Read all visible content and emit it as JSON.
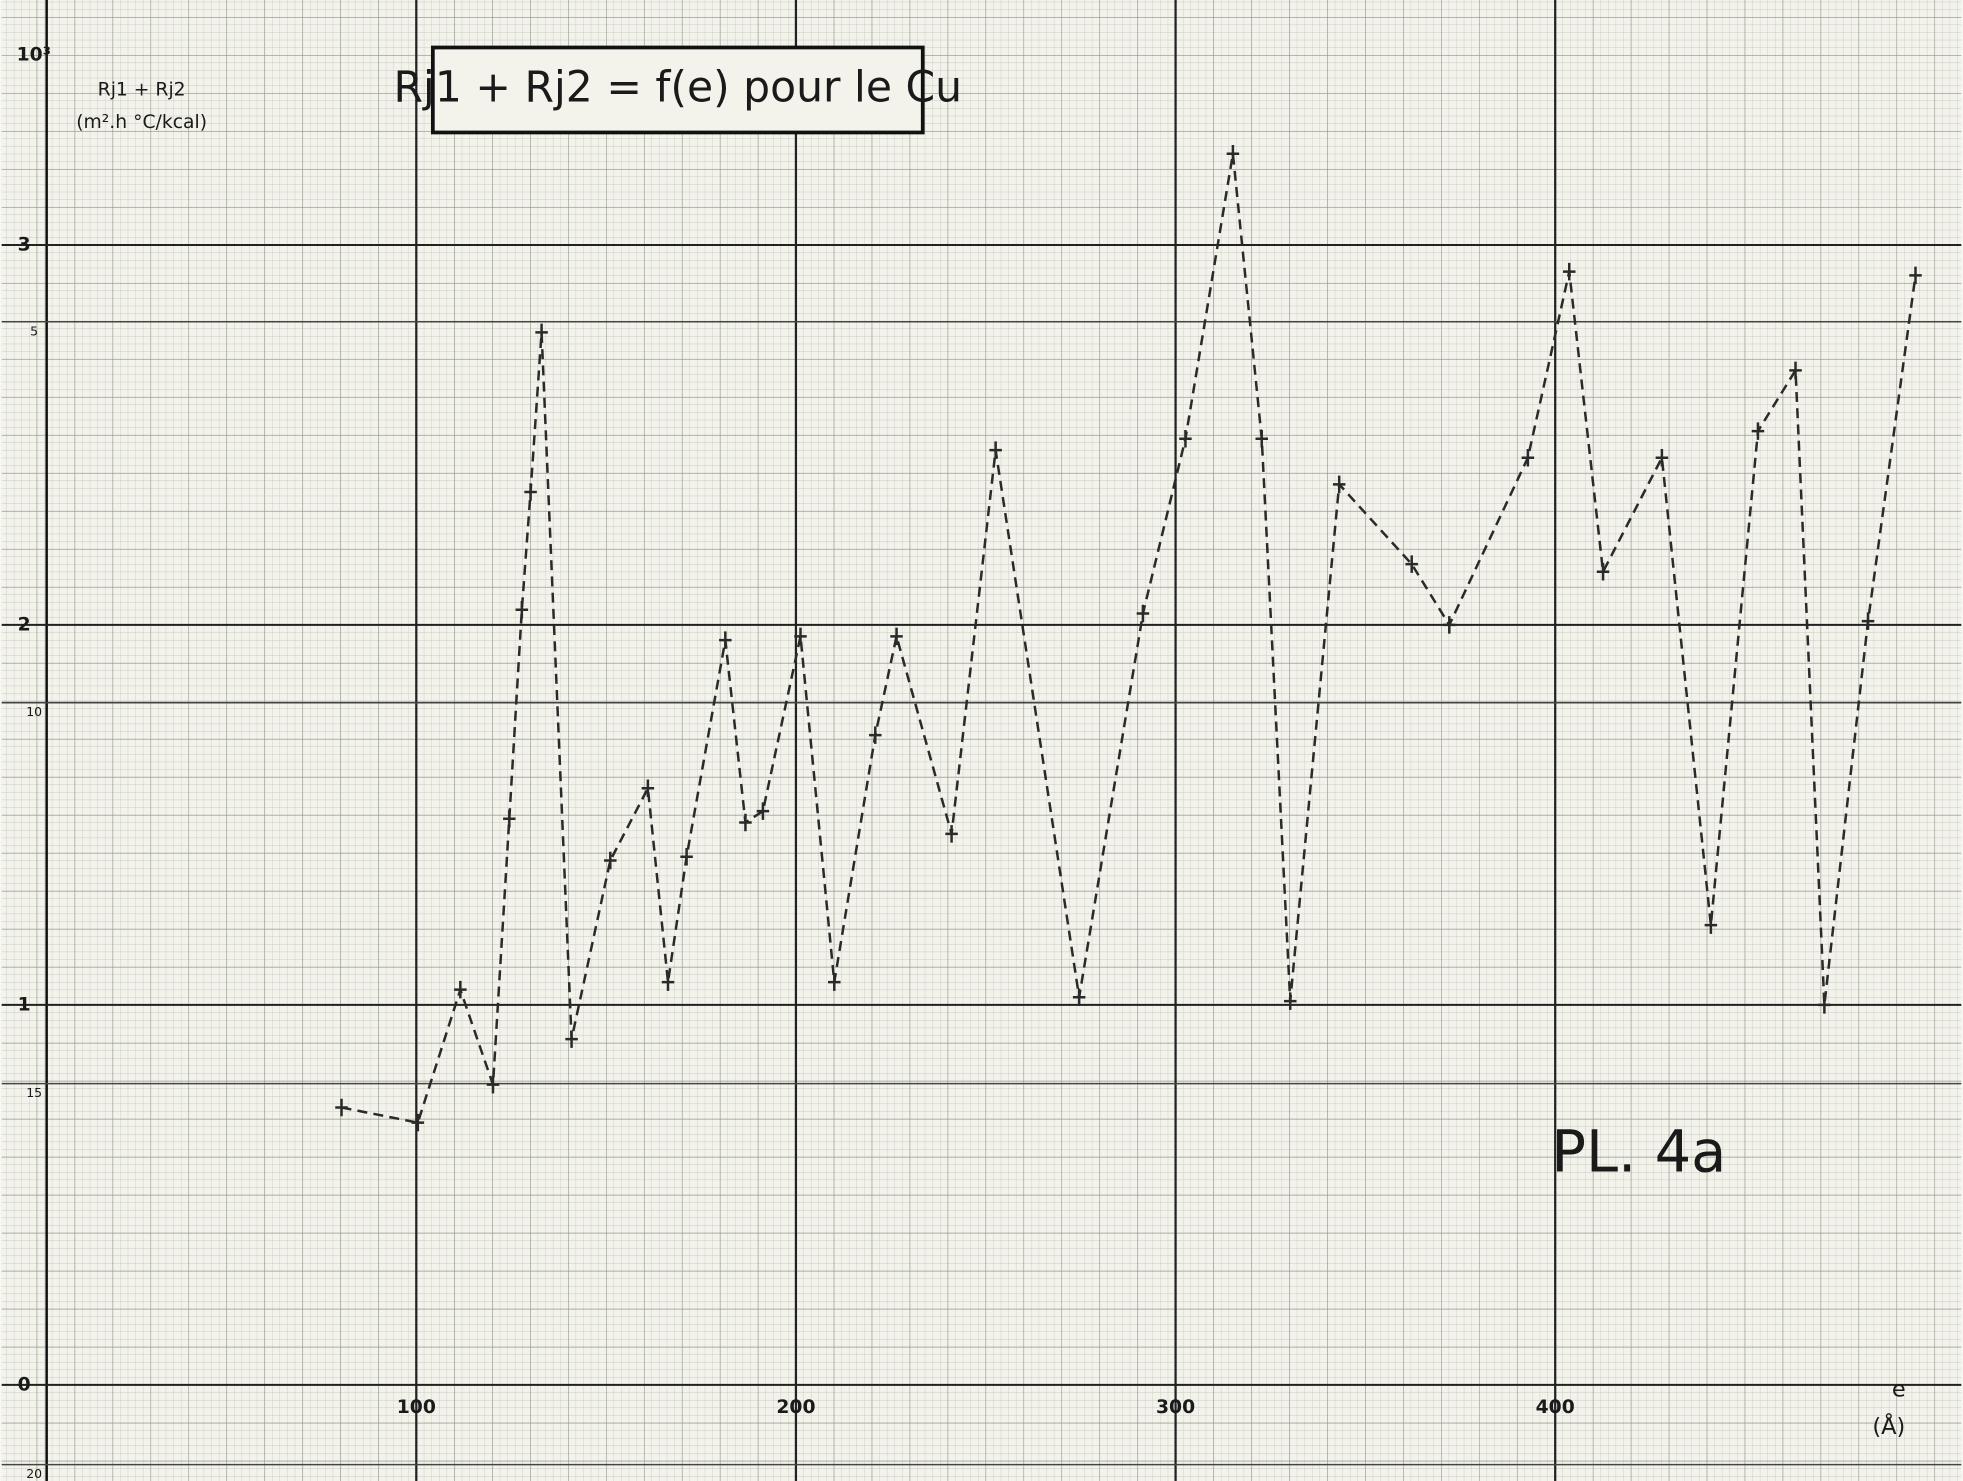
{
  "chart_data": {
    "type": "line",
    "title": "Rj1 + Rj2 = f(e) pour le Cu",
    "y_unit": "10³",
    "y_label": [
      "Rj1 + Rj2",
      "(m².h °C/kcal)"
    ],
    "x_label": "e",
    "x_unit": "(Å)",
    "annotation": "PL. 4a",
    "x": [
      80.3,
      100.4,
      111.6,
      120.2,
      124.5,
      127.8,
      130.1,
      133.0,
      140.9,
      151.1,
      161.0,
      166.3,
      171.2,
      181.4,
      186.7,
      191.3,
      201.2,
      210.1,
      220.9,
      226.5,
      241.0,
      252.6,
      274.6,
      291.4,
      302.6,
      315.1,
      322.7,
      330.2,
      343.1,
      362.2,
      372.1,
      392.8,
      403.7,
      412.6,
      428.1,
      441.0,
      453.4,
      463.3,
      470.9,
      482.4,
      494.9
    ],
    "series": [
      {
        "color": "#2a2a2a",
        "values": [
          0.73,
          0.69,
          1.04,
          0.79,
          1.49,
          2.04,
          2.35,
          2.77,
          0.91,
          1.38,
          1.57,
          1.06,
          1.39,
          1.96,
          1.48,
          1.51,
          1.97,
          1.06,
          1.71,
          1.97,
          1.45,
          2.46,
          1.02,
          2.03,
          2.49,
          3.24,
          2.49,
          1.01,
          2.37,
          2.16,
          2.0,
          2.44,
          2.93,
          2.14,
          2.44,
          1.21,
          2.51,
          2.67,
          1.0,
          2.01,
          2.92
        ]
      }
    ],
    "line_style": "dashed",
    "xlim": [
      0,
      505
    ],
    "xticks": [
      100,
      200,
      300,
      400
    ],
    "ylim": [
      -0.21,
      3.6
    ],
    "yticks": [
      0,
      1,
      2,
      3
    ],
    "y2lim": [
      20,
      1
    ],
    "y2ticks": [
      5,
      10,
      15,
      20
    ],
    "grid": true
  }
}
